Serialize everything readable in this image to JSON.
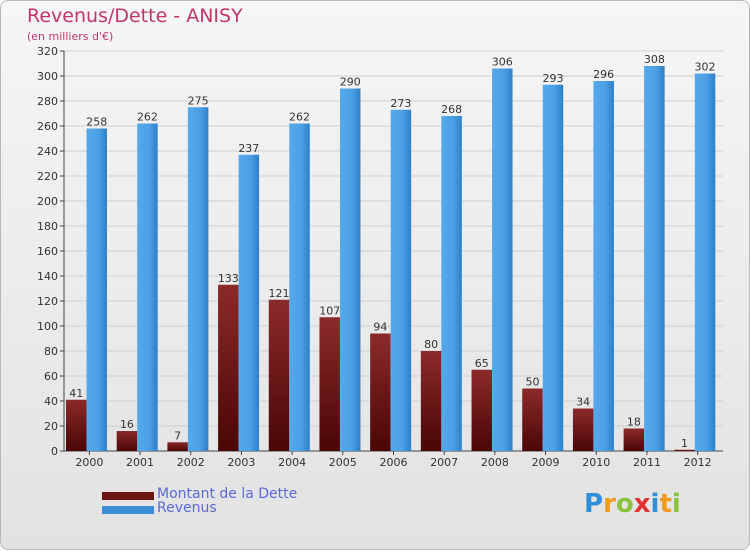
{
  "header": {
    "title": "Revenus/Dette - ANISY",
    "subtitle": "(en milliers d'€)"
  },
  "legend": [
    {
      "label": "Montant de la Dette",
      "color": "#7a1d1d"
    },
    {
      "label": "Revenus",
      "color": "#4a9ee4"
    }
  ],
  "logo": {
    "text": "Proxiti",
    "letters": [
      "P",
      "r",
      "o",
      "x",
      "i",
      "t",
      "i"
    ],
    "colors": [
      "#2f8fd8",
      "#f29a1e",
      "#8bc23f",
      "#e5302f",
      "#2f8fd8",
      "#f29a1e",
      "#8bc23f"
    ]
  },
  "colors": {
    "dette": "#7a1d1d",
    "revenus": "#4a9ee4",
    "title": "#c4346c",
    "legend_text": "#5a6ad6"
  },
  "chart_data": {
    "type": "bar",
    "title": "Revenus/Dette - ANISY",
    "subtitle": "(en milliers d'€)",
    "categories": [
      "2000",
      "2001",
      "2002",
      "2003",
      "2004",
      "2005",
      "2006",
      "2007",
      "2008",
      "2009",
      "2010",
      "2011",
      "2012"
    ],
    "series": [
      {
        "name": "Montant de la Dette",
        "values": [
          41,
          16,
          7,
          133,
          121,
          107,
          94,
          80,
          65,
          50,
          34,
          18,
          1
        ]
      },
      {
        "name": "Revenus",
        "values": [
          258,
          262,
          275,
          237,
          262,
          290,
          273,
          268,
          306,
          293,
          296,
          308,
          302
        ]
      }
    ],
    "ylim": [
      0,
      320
    ],
    "yticks": [
      0,
      20,
      40,
      60,
      80,
      100,
      120,
      140,
      160,
      180,
      200,
      220,
      240,
      260,
      280,
      300,
      320
    ],
    "grid": true,
    "legend_position": "bottom-left"
  }
}
